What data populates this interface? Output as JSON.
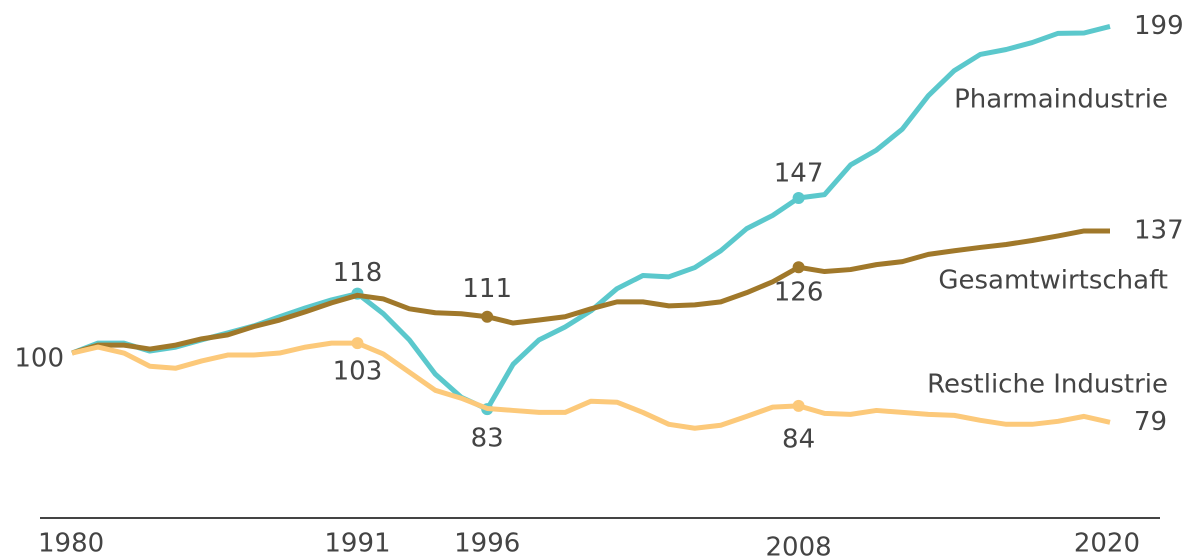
{
  "chart_data": {
    "type": "line",
    "x": [
      1980,
      1981,
      1982,
      1983,
      1984,
      1985,
      1986,
      1987,
      1988,
      1989,
      1990,
      1991,
      1992,
      1993,
      1994,
      1995,
      1996,
      1997,
      1998,
      1999,
      2000,
      2001,
      2002,
      2003,
      2004,
      2005,
      2006,
      2007,
      2008,
      2009,
      2010,
      2011,
      2012,
      2013,
      2014,
      2015,
      2016,
      2017,
      2018,
      2019,
      2020
    ],
    "xlim": [
      1980,
      2020
    ],
    "xticks": [
      1980,
      1991,
      1996,
      2008,
      2020
    ],
    "ylim": [
      50,
      207
    ],
    "series": [
      {
        "name": "Pharmaindustrie",
        "color": "#5bc8cc",
        "labeled_x": [
          1991,
          1996,
          2008
        ],
        "values": [
          100,
          103,
          103,
          100.6,
          101.8,
          104,
          106.1,
          108.2,
          111,
          113.7,
          116.1,
          118,
          111.9,
          104,
          93.6,
          86.6,
          83,
          96.6,
          104,
          107.9,
          112.8,
          119.5,
          123.5,
          123.1,
          125.9,
          131,
          137.7,
          141.7,
          147,
          148,
          157,
          161.5,
          167.9,
          178,
          185.6,
          190.5,
          192,
          194.1,
          196.9,
          197,
          199
        ]
      },
      {
        "name": "Gesamtwirtschaft",
        "color": "#a0782a",
        "labeled_x": [
          1996,
          2008
        ],
        "values": [
          100,
          102.4,
          102.4,
          101.2,
          102.4,
          104.3,
          105.5,
          108,
          110,
          112.5,
          115.2,
          117.5,
          116.4,
          113.4,
          112.2,
          111.9,
          111,
          109.1,
          110,
          111,
          113.4,
          115.5,
          115.5,
          114.3,
          114.6,
          115.5,
          118.3,
          121.6,
          126,
          124.7,
          125.3,
          126.8,
          127.7,
          129.9,
          131,
          132,
          132.9,
          134.1,
          135.5,
          137,
          137
        ]
      },
      {
        "name": "Restliche Industrie",
        "color": "#fcc97a",
        "labeled_x": [
          1991,
          2008
        ],
        "values": [
          100,
          101.8,
          100,
          96,
          95.4,
          97.6,
          99.4,
          99.4,
          100,
          101.8,
          103,
          103,
          99.7,
          94.2,
          88.7,
          86.3,
          83.2,
          82.6,
          82,
          82,
          85.4,
          85.1,
          82,
          78.4,
          77.2,
          78.1,
          80.8,
          83.6,
          84,
          81.7,
          81.4,
          82.6,
          82,
          81.4,
          81.1,
          79.6,
          78.4,
          78.4,
          79.3,
          80.8,
          79
        ]
      }
    ]
  }
}
